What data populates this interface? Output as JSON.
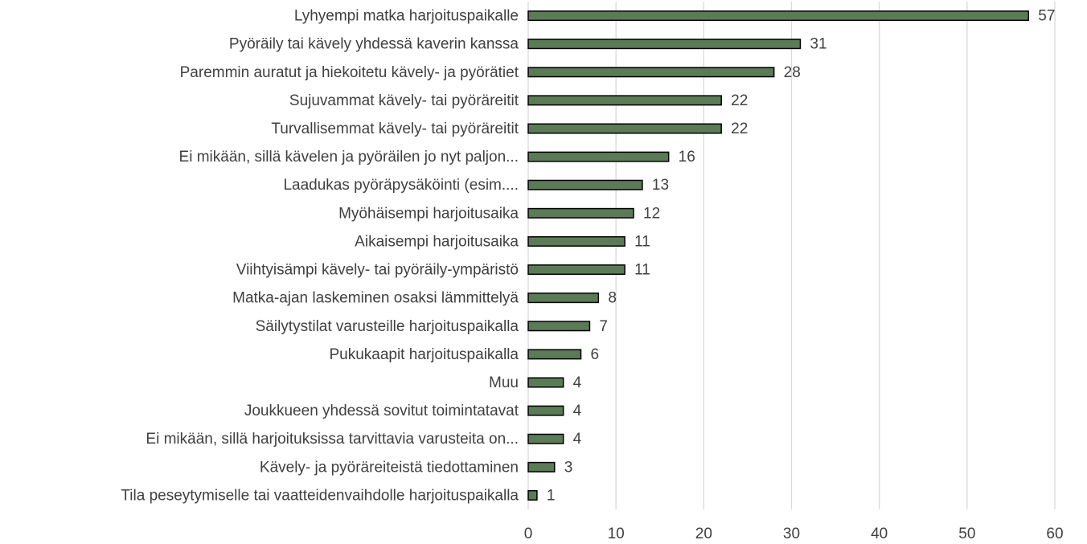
{
  "chart_data": {
    "type": "bar",
    "orientation": "horizontal",
    "categories": [
      "Lyhyempi matka harjoituspaikalle",
      "Pyöräily tai kävely yhdessä kaverin kanssa",
      "Paremmin auratut ja hiekoitetu kävely- ja pyörätiet",
      "Sujuvammat kävely- tai pyöräreitit",
      "Turvallisemmat kävely- tai pyöräreitit",
      "Ei mikään, sillä kävelen ja pyöräilen jo nyt paljon...",
      "Laadukas pyöräpysäköinti (esim....",
      "Myöhäisempi harjoitusaika",
      "Aikaisempi harjoitusaika",
      "Viihtyisämpi kävely- tai pyöräily-ympäristö",
      "Matka-ajan laskeminen osaksi lämmittelyä",
      "Säilytystilat varusteille harjoituspaikalla",
      "Pukukaapit harjoituspaikalla",
      "Muu",
      "Joukkueen yhdessä sovitut toimintatavat",
      "Ei mikään, sillä harjoituksissa tarvittavia varusteita on...",
      "Kävely- ja pyöräreiteistä tiedottaminen",
      "Tila peseytymiselle tai vaatteidenvaihdolle harjoituspaikalla"
    ],
    "values": [
      57,
      31,
      28,
      22,
      22,
      16,
      13,
      12,
      11,
      11,
      8,
      7,
      6,
      4,
      4,
      4,
      3,
      1
    ],
    "color": "#5b7b56",
    "xlim": [
      0,
      60
    ],
    "xticks": [
      0,
      10,
      20,
      30,
      40,
      50,
      60
    ],
    "grid": true
  }
}
